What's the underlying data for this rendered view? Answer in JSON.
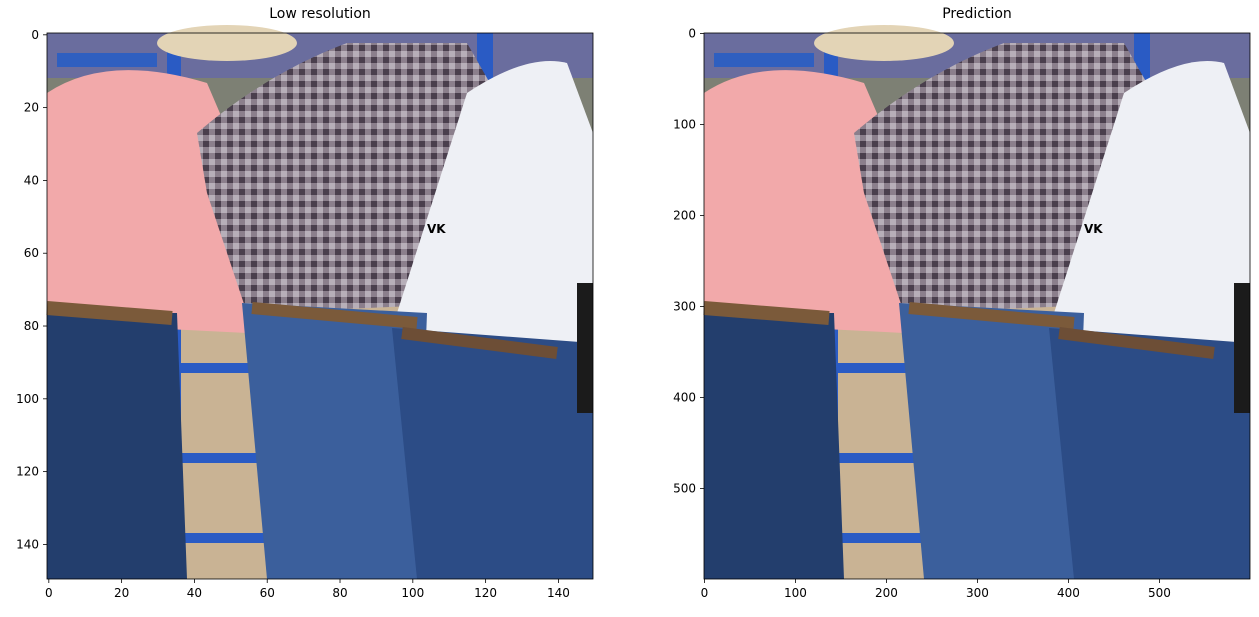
{
  "chart_data": [
    {
      "type": "image",
      "title": "Low resolution",
      "xlim": [
        -0.5,
        149.5
      ],
      "ylim": [
        149.5,
        -0.5
      ],
      "xticks": [
        0,
        20,
        40,
        60,
        80,
        100,
        120,
        140
      ],
      "yticks": [
        0,
        20,
        40,
        60,
        80,
        100,
        120,
        140
      ]
    },
    {
      "type": "image",
      "title": "Prediction",
      "xlim": [
        -0.5,
        599.5
      ],
      "ylim": [
        599.5,
        -0.5
      ],
      "xticks": [
        0,
        100,
        200,
        300,
        400,
        500
      ],
      "yticks": [
        0,
        100,
        200,
        300,
        400,
        500
      ]
    }
  ]
}
